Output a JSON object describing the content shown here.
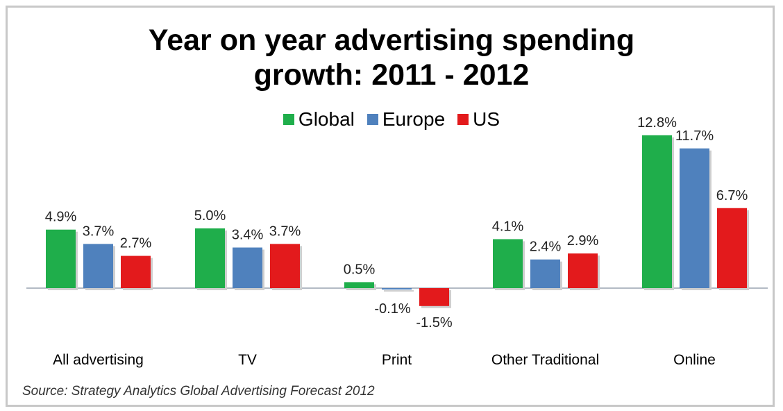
{
  "title_line1": "Year on year advertising spending",
  "title_line2": "growth: 2011 - 2012",
  "legend": [
    {
      "label": "Global",
      "color": "#1fae4b"
    },
    {
      "label": "Europe",
      "color": "#4f81bd"
    },
    {
      "label": "US",
      "color": "#e31a1c"
    }
  ],
  "source": "Source: Strategy Analytics Global Advertising Forecast 2012",
  "chart_data": {
    "type": "bar",
    "title": "Year on year advertising spending growth: 2011 - 2012",
    "categories": [
      "All advertising",
      "TV",
      "Print",
      "Other Traditional",
      "Online"
    ],
    "series": [
      {
        "name": "Global",
        "color": "#1fae4b",
        "values": [
          4.9,
          5.0,
          0.5,
          4.1,
          12.8
        ],
        "labels": [
          "4.9%",
          "5.0%",
          "0.5%",
          "4.1%",
          "12.8%"
        ]
      },
      {
        "name": "Europe",
        "color": "#4f81bd",
        "values": [
          3.7,
          3.4,
          -0.1,
          2.4,
          11.7
        ],
        "labels": [
          "3.7%",
          "3.4%",
          "-0.1%",
          "2.4%",
          "11.7%"
        ]
      },
      {
        "name": "US",
        "color": "#e31a1c",
        "values": [
          2.7,
          3.7,
          -1.5,
          2.9,
          6.7
        ],
        "labels": [
          "2.7%",
          "3.7%",
          "-1.5%",
          "2.9%",
          "6.7%"
        ]
      }
    ],
    "xlabel": "",
    "ylabel": "",
    "grid": false,
    "legend_position": "top"
  }
}
